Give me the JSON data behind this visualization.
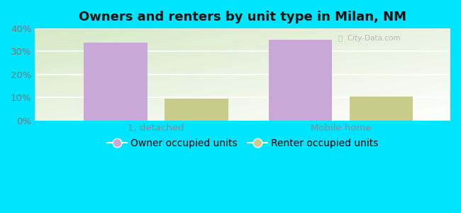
{
  "title": "Owners and renters by unit type in Milan, NM",
  "categories": [
    "1, detached",
    "Mobile home"
  ],
  "owner_values": [
    34,
    35
  ],
  "renter_values": [
    9.5,
    10.5
  ],
  "owner_color": "#c9a8d8",
  "renter_color": "#c8cb8a",
  "ylim": [
    0,
    40
  ],
  "yticks": [
    0,
    10,
    20,
    30,
    40
  ],
  "ytick_labels": [
    "0%",
    "10%",
    "20%",
    "30%",
    "40%"
  ],
  "background_color": "#00e5ff",
  "legend_owner": "Owner occupied units",
  "legend_renter": "Renter occupied units",
  "bar_width": 0.55,
  "title_fontsize": 13,
  "tick_fontsize": 9.5,
  "legend_fontsize": 10,
  "label_color": "#888888",
  "ytick_color": "#777777"
}
